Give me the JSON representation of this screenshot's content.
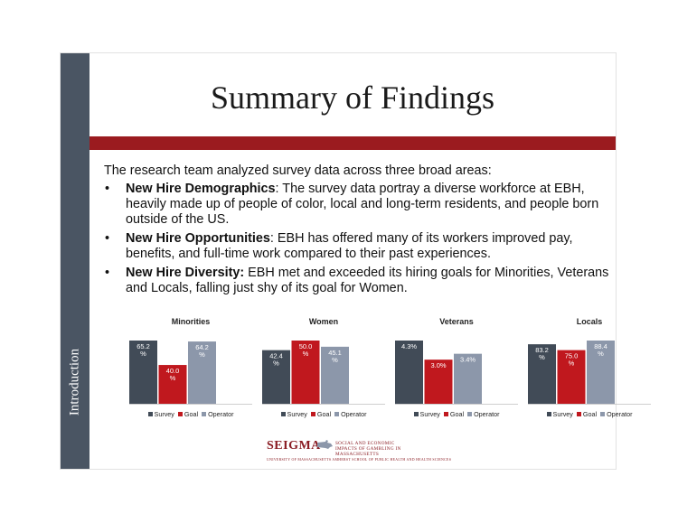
{
  "slide": {
    "sidebar_label": "Introduction",
    "title": "Summary of Findings",
    "intro": "The research team analyzed survey data across three broad areas:",
    "bullets": [
      {
        "head": "New Hire Demographics",
        "text": ": The survey data portray a diverse workforce at EBH, heavily made up of people of color, local and long-term residents, and people born outside of the US."
      },
      {
        "head": "New Hire Opportunities",
        "text": ": EBH has offered many of its workers improved pay, benefits, and full-time work compared to their past experiences."
      },
      {
        "head": "New Hire Diversity:",
        "text": " EBH met and exceeded its hiring goals for Minorities, Veterans and Locals, falling just shy of its goal for Women."
      }
    ],
    "logo": {
      "word": "SEIGMA",
      "tagline": "SOCIAL AND ECONOMIC IMPACTS OF GAMBLING IN MASSACHUSETTS",
      "subline": "UNIVERSITY OF MASSACHUSETTS AMHERST SCHOOL OF PUBLIC HEALTH AND HEALTH SCIENCES"
    },
    "colors": {
      "sidebar": "#4a5563",
      "title_bar": "#9b1b1f",
      "survey": "#414b57",
      "goal": "#c0181e",
      "operator": "#8c97aa"
    }
  },
  "chart_data": [
    {
      "type": "bar",
      "title": "Minorities",
      "categories": [
        "Survey",
        "Goal",
        "Operator"
      ],
      "values": [
        65.2,
        40.0,
        64.2
      ],
      "labels": [
        "65.2 %",
        "40.0 %",
        "64.2 %"
      ],
      "legend": [
        "Survey",
        "Goal",
        "Operator"
      ],
      "legend_position": "bottom"
    },
    {
      "type": "bar",
      "title": "Women",
      "categories": [
        "Survey",
        "Goal",
        "Operator"
      ],
      "values": [
        42.4,
        50.0,
        45.1
      ],
      "labels": [
        "42.4 %",
        "50.0 %",
        "45.1 %"
      ],
      "legend": [
        "Survey",
        "Goal",
        "Operator"
      ],
      "legend_position": "bottom"
    },
    {
      "type": "bar",
      "title": "Veterans",
      "categories": [
        "Survey",
        "Goal",
        "Operator"
      ],
      "values": [
        4.3,
        3.0,
        3.4
      ],
      "labels": [
        "4.3%",
        "3.0%",
        "3.4%"
      ],
      "legend": [
        "Survey",
        "Goal",
        "Operator"
      ],
      "legend_position": "bottom"
    },
    {
      "type": "bar",
      "title": "Locals",
      "categories": [
        "Survey",
        "Goal",
        "Operator"
      ],
      "values": [
        83.2,
        75.0,
        88.4
      ],
      "labels": [
        "83.2 %",
        "75.0 %",
        "88.4 %"
      ],
      "legend": [
        "Survey",
        "Goal",
        "Operator"
      ],
      "legend_position": "bottom"
    }
  ]
}
